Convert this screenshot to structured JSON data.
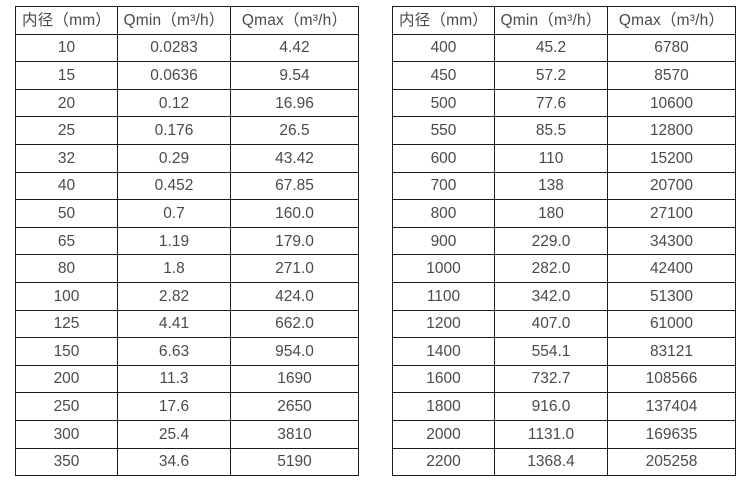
{
  "page": {
    "background": "#ffffff",
    "text_color": "#4a4a4a",
    "border_color": "#1c1c1c"
  },
  "tables": [
    {
      "name": "flow-rate-table-small-diameters",
      "headers": [
        "内径（mm）",
        "Qmin（m³/h）",
        "Qmax（m³/h）"
      ],
      "rows": [
        [
          "10",
          "0.0283",
          "4.42"
        ],
        [
          "15",
          "0.0636",
          "9.54"
        ],
        [
          "20",
          "0.12",
          "16.96"
        ],
        [
          "25",
          "0.176",
          "26.5"
        ],
        [
          "32",
          "0.29",
          "43.42"
        ],
        [
          "40",
          "0.452",
          "67.85"
        ],
        [
          "50",
          "0.7",
          "160.0"
        ],
        [
          "65",
          "1.19",
          "179.0"
        ],
        [
          "80",
          "1.8",
          "271.0"
        ],
        [
          "100",
          "2.82",
          "424.0"
        ],
        [
          "125",
          "4.41",
          "662.0"
        ],
        [
          "150",
          "6.63",
          "954.0"
        ],
        [
          "200",
          "11.3",
          "1690"
        ],
        [
          "250",
          "17.6",
          "2650"
        ],
        [
          "300",
          "25.4",
          "3810"
        ],
        [
          "350",
          "34.6",
          "5190"
        ]
      ]
    },
    {
      "name": "flow-rate-table-large-diameters",
      "headers": [
        "内径（mm）",
        "Qmin（m³/h）",
        "Qmax（m³/h）"
      ],
      "rows": [
        [
          "400",
          "45.2",
          "6780"
        ],
        [
          "450",
          "57.2",
          "8570"
        ],
        [
          "500",
          "77.6",
          "10600"
        ],
        [
          "550",
          "85.5",
          "12800"
        ],
        [
          "600",
          "110",
          "15200"
        ],
        [
          "700",
          "138",
          "20700"
        ],
        [
          "800",
          "180",
          "27100"
        ],
        [
          "900",
          "229.0",
          "34300"
        ],
        [
          "1000",
          "282.0",
          "42400"
        ],
        [
          "1100",
          "342.0",
          "51300"
        ],
        [
          "1200",
          "407.0",
          "61000"
        ],
        [
          "1400",
          "554.1",
          "83121"
        ],
        [
          "1600",
          "732.7",
          "108566"
        ],
        [
          "1800",
          "916.0",
          "137404"
        ],
        [
          "2000",
          "1131.0",
          "169635"
        ],
        [
          "2200",
          "1368.4",
          "205258"
        ]
      ]
    }
  ]
}
